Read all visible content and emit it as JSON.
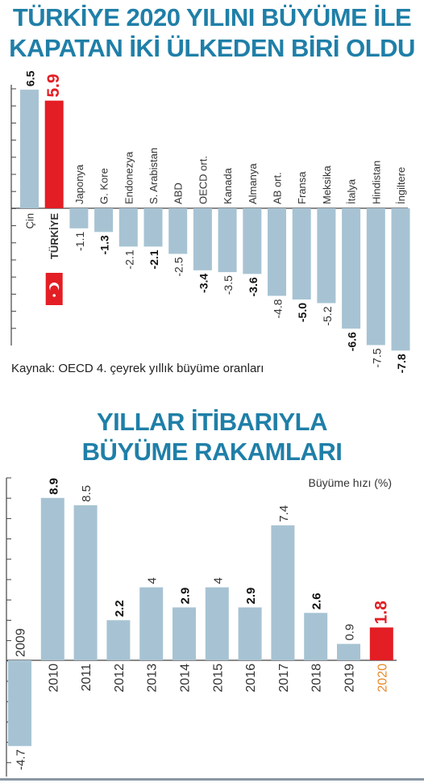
{
  "chart1_title_line1": "TÜRKİYE 2020 YILINI BÜYÜME İLE",
  "chart1_title_line2": "KAPATAN İKİ ÜLKEDEN BİRİ OLDU",
  "chart1_source": "Kaynak: OECD 4. çeyrek yıllık büyüme oranları",
  "chart2_title_line1": "YILLAR İTİBARIYLA",
  "chart2_title_line2": "BÜYÜME RAKAMLARI",
  "chart2_unit": "Büyüme hızı (%)",
  "colors": {
    "title": "#1f7fa8",
    "bar": "#a7c3d3",
    "highlight": "#e31e24",
    "axis": "#444444"
  },
  "chart_data": [
    {
      "type": "bar",
      "title": "TÜRKİYE 2020 YILINI BÜYÜME İLE KAPATAN İKİ ÜLKEDEN BİRİ OLDU",
      "categories": [
        "Çin",
        "TÜRKİYE",
        "Japonya",
        "G. Kore",
        "Endonezya",
        "S. Arabistan",
        "ABD",
        "OECD ort.",
        "Kanada",
        "Almanya",
        "AB ort.",
        "Fransa",
        "Meksika",
        "İtalya",
        "Hindistan",
        "İngiltere"
      ],
      "value_labels": [
        "6.5",
        "5.9",
        "-1.1",
        "-1.3",
        "-2.1",
        "-2.1",
        "-2.5",
        "-3.4",
        "-3.5",
        "-3.6",
        "-4.8",
        "-5.0",
        "-5.2",
        "-6.6",
        "-7.5",
        "-7.8"
      ],
      "values": [
        6.5,
        5.9,
        -1.1,
        -1.3,
        -2.1,
        -2.1,
        -2.5,
        -3.4,
        -3.5,
        -3.6,
        -4.8,
        -5.0,
        -5.2,
        -6.6,
        -7.5,
        -7.8
      ],
      "bold": [
        true,
        true,
        false,
        true,
        false,
        true,
        false,
        true,
        false,
        true,
        false,
        true,
        false,
        true,
        false,
        true
      ],
      "highlight_index": 1,
      "ylim": [
        -8,
        7
      ],
      "orientation": "vertical",
      "source": "Kaynak: OECD 4. çeyrek yıllık büyüme oranları"
    },
    {
      "type": "bar",
      "title": "YILLAR İTİBARIYLA BÜYÜME RAKAMLARI",
      "ylabel": "Büyüme hızı (%)",
      "categories": [
        "2009",
        "2010",
        "2011",
        "2012",
        "2013",
        "2014",
        "2015",
        "2016",
        "2017",
        "2018",
        "2019",
        "2020"
      ],
      "value_labels": [
        "-4.7",
        "8.9",
        "8.5",
        "2.2",
        "4",
        "2.9",
        "4",
        "2.9",
        "7.4",
        "2.6",
        "0.9",
        "1.8"
      ],
      "values": [
        -4.7,
        8.9,
        8.5,
        2.2,
        4,
        2.9,
        4,
        2.9,
        7.4,
        2.6,
        0.9,
        1.8
      ],
      "bold": [
        false,
        true,
        false,
        true,
        false,
        true,
        false,
        true,
        false,
        true,
        false,
        true
      ],
      "highlight_index": 11,
      "ylim": [
        -5,
        10
      ]
    }
  ]
}
